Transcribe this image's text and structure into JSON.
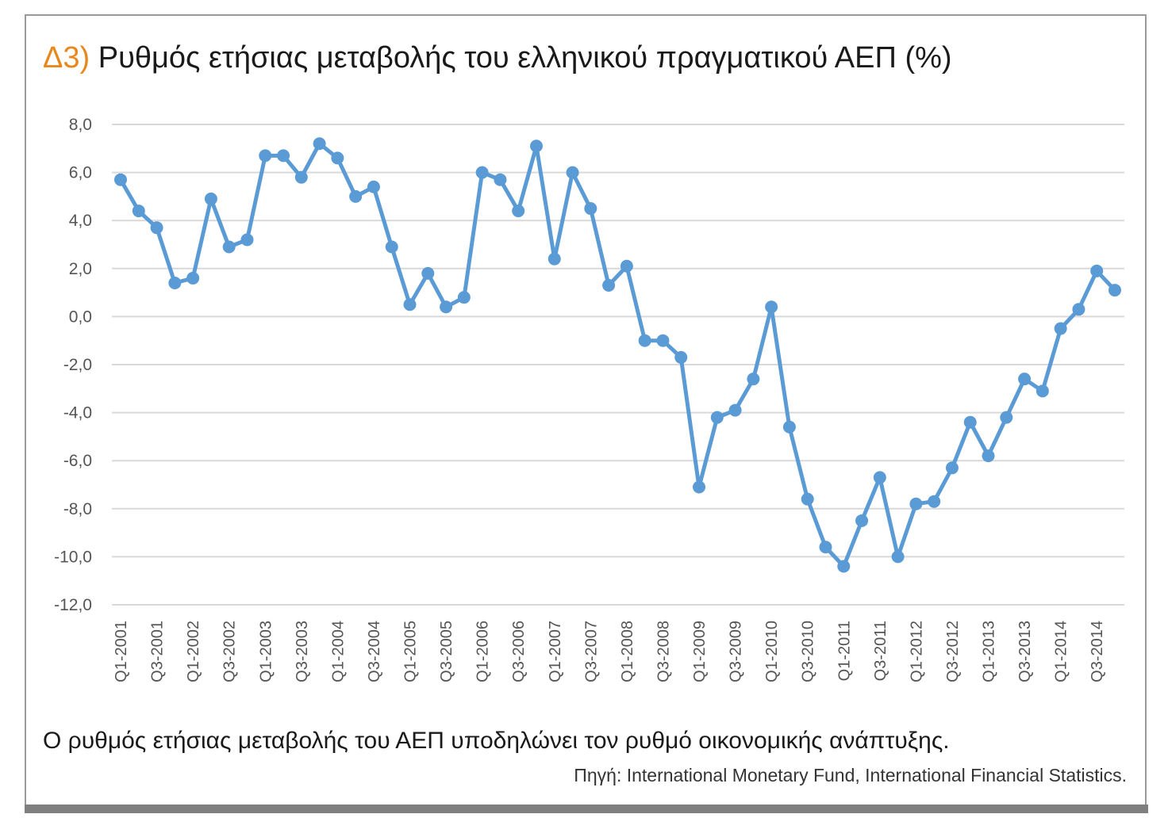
{
  "header": {
    "label": "Δ3)",
    "title": "Ρυθμός ετήσιας μεταβολής του ελληνικού πραγματικού ΑΕΠ (%)"
  },
  "footer": {
    "caption": "Ο ρυθμός ετήσιας μεταβολής του ΑΕΠ υποδηλώνει τον ρυθμό οικονομικής ανάπτυξης.",
    "source": "Πηγή: International Monetary Fund, International Financial Statistics."
  },
  "colors": {
    "line": "#5b9bd5",
    "label": "#e8881c",
    "grid": "#d9d9d9"
  },
  "chart_data": {
    "type": "line",
    "title": "",
    "xlabel": "",
    "ylabel": "",
    "ylim": [
      -12,
      8
    ],
    "yticks": [
      "8,0",
      "6,0",
      "4,0",
      "2,0",
      "0,0",
      "-2,0",
      "-4,0",
      "-6,0",
      "-8,0",
      "-10,0",
      "-12,0"
    ],
    "ytick_values": [
      8,
      6,
      4,
      2,
      0,
      -2,
      -4,
      -6,
      -8,
      -10,
      -12
    ],
    "grid": true,
    "legend": "none",
    "categories": [
      "Q1-2001",
      "Q2-2001",
      "Q3-2001",
      "Q4-2001",
      "Q1-2002",
      "Q2-2002",
      "Q3-2002",
      "Q4-2002",
      "Q1-2003",
      "Q2-2003",
      "Q3-2003",
      "Q4-2003",
      "Q1-2004",
      "Q2-2004",
      "Q3-2004",
      "Q4-2004",
      "Q1-2005",
      "Q2-2005",
      "Q3-2005",
      "Q4-2005",
      "Q1-2006",
      "Q2-2006",
      "Q3-2006",
      "Q4-2006",
      "Q1-2007",
      "Q2-2007",
      "Q3-2007",
      "Q4-2007",
      "Q1-2008",
      "Q2-2008",
      "Q3-2008",
      "Q4-2008",
      "Q1-2009",
      "Q2-2009",
      "Q3-2009",
      "Q4-2009",
      "Q1-2010",
      "Q2-2010",
      "Q3-2010",
      "Q4-2010",
      "Q1-2011",
      "Q2-2011",
      "Q3-2011",
      "Q4-2011",
      "Q1-2012",
      "Q2-2012",
      "Q3-2012",
      "Q4-2012",
      "Q1-2013",
      "Q2-2013",
      "Q3-2013",
      "Q4-2013",
      "Q1-2014",
      "Q2-2014",
      "Q3-2014",
      "Q4-2014"
    ],
    "tick_labels": [
      "Q1-2001",
      "Q3-2001",
      "Q1-2002",
      "Q3-2002",
      "Q1-2003",
      "Q3-2003",
      "Q1-2004",
      "Q3-2004",
      "Q1-2005",
      "Q3-2005",
      "Q1-2006",
      "Q3-2006",
      "Q1-2007",
      "Q3-2007",
      "Q1-2008",
      "Q3-2008",
      "Q1-2009",
      "Q3-2009",
      "Q1-2010",
      "Q3-2010",
      "Q1-2011",
      "Q3-2011",
      "Q1-2012",
      "Q3-2012",
      "Q1-2013",
      "Q3-2013",
      "Q1-2014",
      "Q3-2014"
    ],
    "values": [
      5.7,
      4.4,
      3.7,
      1.4,
      1.6,
      4.9,
      2.9,
      3.2,
      6.7,
      6.7,
      5.8,
      7.2,
      6.6,
      5.0,
      5.4,
      2.9,
      0.5,
      1.8,
      0.4,
      0.8,
      6.0,
      5.7,
      4.4,
      7.1,
      2.4,
      6.0,
      4.5,
      1.3,
      2.1,
      -1.0,
      -1.0,
      -1.7,
      -7.1,
      -4.2,
      -3.9,
      -2.6,
      0.4,
      -4.6,
      -7.6,
      -9.6,
      -10.4,
      -8.5,
      -6.7,
      -10.0,
      -7.8,
      -7.7,
      -6.3,
      -4.4,
      -5.8,
      -4.2,
      -2.6,
      -3.1,
      -0.5,
      0.3,
      1.9,
      1.1
    ]
  }
}
